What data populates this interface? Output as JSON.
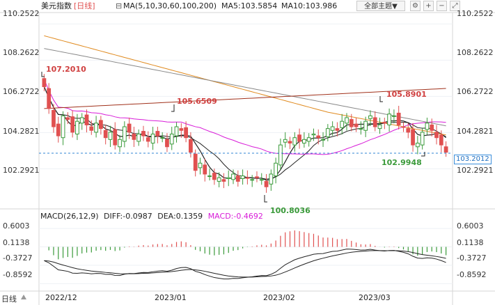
{
  "toolbar": {
    "symbol": "美元指数",
    "period": "[日线]",
    "ma_label": "MA(5,10,30,60,100,200)",
    "ma5": "MA5:103.5854",
    "ma10": "MA10:103.986",
    "theme_button": "全部主题▼",
    "icons": [
      "settings-icon",
      "zoom-in-icon",
      "zoom-out-icon",
      "expand-icon"
    ]
  },
  "price_axis": [
    "110.2522",
    "108.2622",
    "106.2722",
    "104.2821",
    "102.2921"
  ],
  "current_price": "103.2012",
  "annotations": {
    "high1": "107.2010",
    "high2": "105.6509",
    "high3": "105.8901",
    "low1": "100.8036",
    "low2": "102.9948"
  },
  "macd": {
    "title": "MACD(26,12,9)",
    "diff": "DIFF:-0.0987",
    "dea": "DEA:0.1359",
    "macd": "MACD:-0.4692",
    "axis_right": [
      "0.6003",
      "0.1138",
      "-0.3727",
      "-0.8592"
    ],
    "axis_left": [
      "0.6003",
      "0.1138",
      "-0.3727",
      "-0.8592"
    ]
  },
  "x_axis": [
    "2022/12",
    "2023/01",
    "2023/02",
    "2023/03"
  ],
  "daily_label": "日线",
  "colors": {
    "up": "#3a9a3a",
    "down": "#e05050",
    "ma5": "#222222",
    "ma10": "#222222",
    "ma30": "#d81bd8",
    "ma60": "#e08a1e",
    "ma100": "#888888",
    "ma200": "#a0301a",
    "annotation_red": "#d04040",
    "annotation_green": "#3a9a3a",
    "current_price_line": "#2f86d6"
  },
  "chart_data": {
    "type": "candlestick",
    "period": "daily",
    "price_range": [
      100.2,
      110.8
    ],
    "macd_range": [
      -1.0,
      0.75
    ],
    "close": [
      106.8,
      105.6,
      104.6,
      104.1,
      105.2,
      105.0,
      104.3,
      104.9,
      105.1,
      104.7,
      104.4,
      104.8,
      104.5,
      104.0,
      104.3,
      103.6,
      103.9,
      104.6,
      104.3,
      103.9,
      104.2,
      104.1,
      103.8,
      104.2,
      104.1,
      104.0,
      103.5,
      104.2,
      104.6,
      104.4,
      104.0,
      103.2,
      102.2,
      102.6,
      102.0,
      101.9,
      101.7,
      101.8,
      101.6,
      101.8,
      102.0,
      101.6,
      101.9,
      101.8,
      101.7,
      101.8,
      101.7,
      101.3,
      102.0,
      102.6,
      103.6,
      103.9,
      103.7,
      104.0,
      103.8,
      103.9,
      104.0,
      104.2,
      104.0,
      103.9,
      104.5,
      104.6,
      104.4,
      104.9,
      105.1,
      104.6,
      104.6,
      104.5,
      104.9,
      105.2,
      104.6,
      104.7,
      104.8,
      105.3,
      105.2,
      104.7,
      104.6,
      104.3,
      103.6,
      103.7,
      104.3,
      104.8,
      104.4,
      104.0,
      103.6,
      103.2
    ]
  }
}
